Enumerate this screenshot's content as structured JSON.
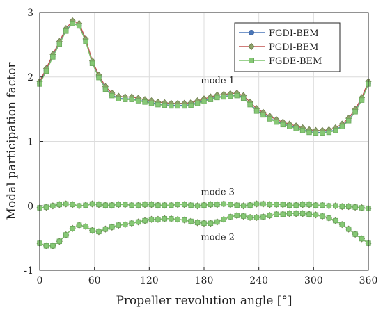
{
  "chart_data": {
    "type": "line",
    "xlabel": "Propeller revolution angle [°]",
    "ylabel": "Modal participation factor",
    "xlim": [
      0,
      360
    ],
    "ylim": [
      -1,
      3
    ],
    "xticks": [
      0,
      60,
      120,
      180,
      240,
      300,
      360
    ],
    "yticks": [
      -1,
      0,
      1,
      2,
      3
    ],
    "grid": true,
    "legend_position": "top-right",
    "annotations": [
      {
        "text": "mode 1",
        "x": 195,
        "y": 1.9
      },
      {
        "text": "mode 3",
        "x": 195,
        "y": 0.17
      },
      {
        "text": "mode 2",
        "x": 195,
        "y": -0.53
      }
    ],
    "series": [
      {
        "name": "FGDI-BEM",
        "color": "#4a76b8",
        "marker": "circle"
      },
      {
        "name": "PGDI-BEM",
        "color": "#c0504d",
        "marker": "diamond"
      },
      {
        "name": "FGDE-BEM",
        "color": "#7cc36b",
        "marker": "square"
      }
    ],
    "x": [
      0,
      7.2,
      14.4,
      21.6,
      28.8,
      36,
      43.2,
      50.4,
      57.6,
      64.8,
      72,
      79.2,
      86.4,
      93.6,
      100.8,
      108,
      115.2,
      122.4,
      129.6,
      136.8,
      144,
      151.2,
      158.4,
      165.6,
      172.8,
      180,
      187.2,
      194.4,
      201.6,
      208.8,
      216,
      223.2,
      230.4,
      237.6,
      244.8,
      252,
      259.2,
      266.4,
      273.6,
      280.8,
      288,
      295.2,
      302.4,
      309.6,
      316.8,
      324,
      331.2,
      338.4,
      345.6,
      352.8,
      360
    ],
    "mode1": [
      1.9,
      2.1,
      2.32,
      2.52,
      2.72,
      2.84,
      2.8,
      2.56,
      2.22,
      2.0,
      1.82,
      1.72,
      1.67,
      1.66,
      1.66,
      1.64,
      1.62,
      1.6,
      1.58,
      1.57,
      1.56,
      1.56,
      1.56,
      1.57,
      1.6,
      1.63,
      1.66,
      1.69,
      1.7,
      1.71,
      1.72,
      1.68,
      1.58,
      1.48,
      1.42,
      1.36,
      1.31,
      1.27,
      1.24,
      1.21,
      1.18,
      1.15,
      1.14,
      1.14,
      1.15,
      1.18,
      1.24,
      1.33,
      1.47,
      1.65,
      1.9
    ],
    "mode3": [
      -0.03,
      -0.02,
      0.0,
      0.02,
      0.03,
      0.02,
      0.0,
      0.01,
      0.03,
      0.02,
      0.01,
      0.01,
      0.02,
      0.02,
      0.01,
      0.01,
      0.02,
      0.02,
      0.01,
      0.01,
      0.01,
      0.02,
      0.02,
      0.01,
      0.0,
      0.01,
      0.02,
      0.02,
      0.03,
      0.02,
      0.01,
      0.0,
      0.01,
      0.03,
      0.03,
      0.02,
      0.02,
      0.02,
      0.01,
      0.01,
      0.02,
      0.02,
      0.01,
      0.01,
      0.0,
      0.0,
      -0.01,
      -0.01,
      -0.02,
      -0.03,
      -0.04
    ],
    "mode2": [
      -0.58,
      -0.62,
      -0.62,
      -0.55,
      -0.45,
      -0.35,
      -0.3,
      -0.32,
      -0.38,
      -0.4,
      -0.36,
      -0.33,
      -0.3,
      -0.29,
      -0.27,
      -0.25,
      -0.23,
      -0.21,
      -0.21,
      -0.2,
      -0.2,
      -0.21,
      -0.22,
      -0.24,
      -0.26,
      -0.27,
      -0.27,
      -0.25,
      -0.21,
      -0.17,
      -0.15,
      -0.16,
      -0.18,
      -0.18,
      -0.17,
      -0.15,
      -0.13,
      -0.13,
      -0.12,
      -0.12,
      -0.12,
      -0.13,
      -0.14,
      -0.16,
      -0.19,
      -0.23,
      -0.29,
      -0.36,
      -0.44,
      -0.51,
      -0.58
    ]
  }
}
